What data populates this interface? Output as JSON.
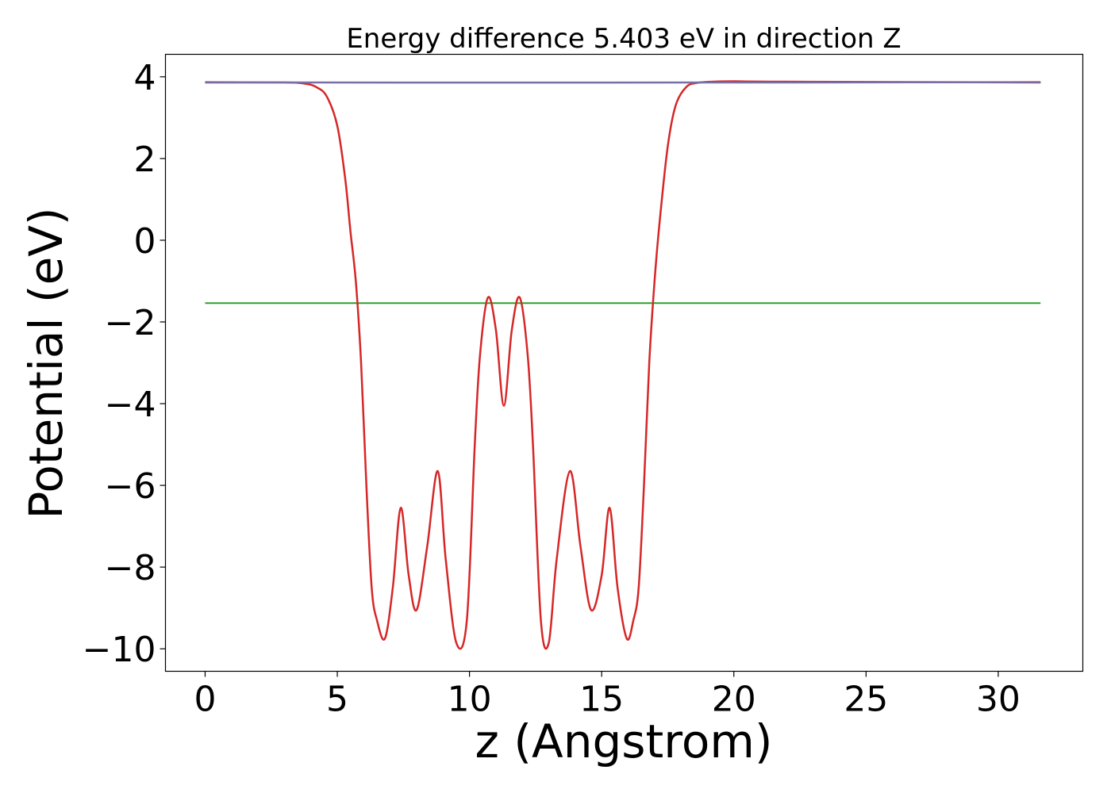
{
  "chart_data": {
    "type": "line",
    "title": "Energy difference 5.403 eV in direction Z",
    "xlabel": "z (Angstrom)",
    "ylabel": "Potential (eV)",
    "xlim": [
      -1.5,
      33.2
    ],
    "ylim": [
      -10.55,
      4.55
    ],
    "xticks": [
      0,
      5,
      10,
      15,
      20,
      25,
      30
    ],
    "xtick_labels": [
      "0",
      "5",
      "10",
      "15",
      "20",
      "25",
      "30"
    ],
    "yticks": [
      4,
      2,
      0,
      -2,
      -4,
      -6,
      -8,
      -10
    ],
    "ytick_labels": [
      "4",
      "2",
      "0",
      "−2",
      "−4",
      "−6",
      "−8",
      "−10"
    ],
    "grid": false,
    "colors": {
      "vacuum_level": "#1f77b4",
      "fermi_level": "#2ca02c",
      "potential": "#d62728",
      "average": "#7b6fa8"
    },
    "series": [
      {
        "key": "vacuum_level",
        "x": [
          0,
          31.6
        ],
        "y": [
          3.86,
          3.86
        ]
      },
      {
        "key": "fermi_level",
        "x": [
          0,
          31.6
        ],
        "y": [
          -1.54,
          -1.54
        ]
      },
      {
        "key": "potential",
        "x": [
          0,
          3.0,
          3.8,
          4.2,
          4.6,
          5.0,
          5.3,
          5.5,
          5.7,
          5.9,
          6.1,
          6.3,
          6.5,
          6.8,
          7.1,
          7.4,
          7.7,
          8.0,
          8.4,
          8.8,
          9.1,
          9.5,
          9.9,
          10.2,
          10.4,
          10.7,
          11.0,
          11.3,
          11.6,
          11.9,
          12.2,
          12.4,
          12.7,
          13.0,
          13.3,
          13.8,
          14.2,
          14.6,
          15.0,
          15.3,
          15.6,
          15.95,
          16.2,
          16.4,
          16.6,
          16.8,
          17.0,
          17.2,
          17.5,
          17.8,
          18.2,
          18.6,
          19.2,
          20.0,
          22.0,
          31.6
        ],
        "y": [
          3.86,
          3.86,
          3.83,
          3.75,
          3.52,
          2.8,
          1.5,
          0.2,
          -1.0,
          -3.0,
          -6.0,
          -8.5,
          -9.3,
          -9.75,
          -8.5,
          -6.55,
          -8.2,
          -9.05,
          -7.5,
          -5.65,
          -7.8,
          -9.85,
          -9.3,
          -5.0,
          -2.8,
          -1.4,
          -2.2,
          -4.05,
          -2.2,
          -1.4,
          -2.8,
          -5.0,
          -9.3,
          -9.85,
          -7.8,
          -5.65,
          -7.5,
          -9.05,
          -8.2,
          -6.55,
          -8.5,
          -9.75,
          -9.3,
          -8.5,
          -6.0,
          -3.0,
          -1.0,
          0.5,
          2.3,
          3.3,
          3.75,
          3.85,
          3.88,
          3.89,
          3.88,
          3.86
        ]
      },
      {
        "key": "average",
        "x": [
          0,
          4.0,
          18.9,
          31.6
        ],
        "y": [
          3.87,
          3.86,
          3.86,
          3.87
        ]
      }
    ]
  }
}
